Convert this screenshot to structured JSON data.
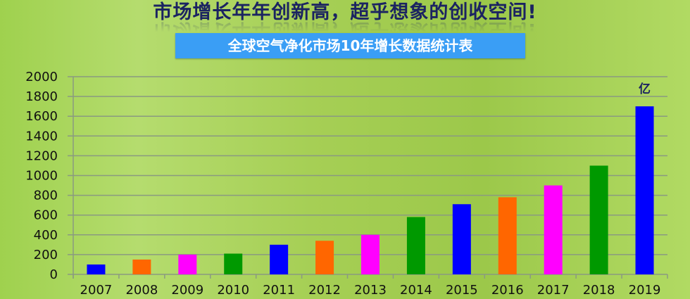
{
  "header": {
    "title": "市场增长年年创新高，超乎想象的创收空间!",
    "subtitle": "全球空气净化市场10年增长数据统计表"
  },
  "chart_data": {
    "type": "bar",
    "title": "全球空气净化市场10年增长数据统计表",
    "categories": [
      "2007",
      "2008",
      "2009",
      "2010",
      "2011",
      "2012",
      "2013",
      "2014",
      "2015",
      "2016",
      "2017",
      "2018",
      "2019"
    ],
    "values": [
      100,
      150,
      200,
      210,
      300,
      340,
      400,
      580,
      710,
      780,
      900,
      1100,
      1700
    ],
    "colors": [
      "#0000ff",
      "#ff6600",
      "#ff00ff",
      "#009900",
      "#0000ff",
      "#ff6600",
      "#ff00ff",
      "#009900",
      "#0000ff",
      "#ff6600",
      "#ff00ff",
      "#009900",
      "#0000ff"
    ],
    "unit_label": "亿",
    "ylim": [
      0,
      2000
    ],
    "yticks": [
      "0",
      "200",
      "400",
      "600",
      "800",
      "1000",
      "1200",
      "1400",
      "1600",
      "1800",
      "2000"
    ],
    "grid": true,
    "xlabel": "",
    "ylabel": ""
  }
}
